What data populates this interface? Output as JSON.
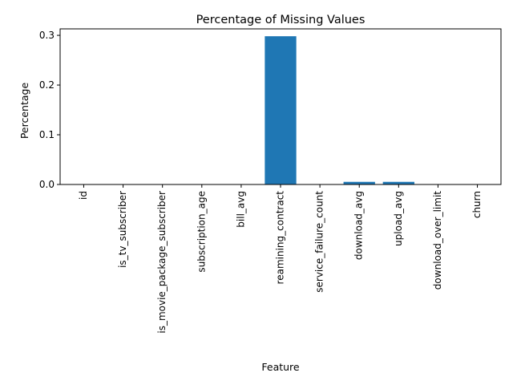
{
  "chart_data": {
    "type": "bar",
    "title": "Percentage of Missing Values",
    "xlabel": "Feature",
    "ylabel": "Percentage",
    "categories": [
      "id",
      "is_tv_subscriber",
      "is_movie_package_subscriber",
      "subscription_age",
      "bill_avg",
      "reamining_contract",
      "service_failure_count",
      "download_avg",
      "upload_avg",
      "download_over_limit",
      "churn"
    ],
    "values": [
      0,
      0,
      0,
      0,
      0,
      0.2982,
      0,
      0.0053,
      0.0053,
      0,
      0
    ],
    "ylim": [
      0,
      0.313
    ],
    "yticks": [
      0.0,
      0.1,
      0.2,
      0.3
    ],
    "ytick_labels": [
      "0.0",
      "0.1",
      "0.2",
      "0.3"
    ],
    "grid": false,
    "legend": "none",
    "bar_color": "#1f77b4"
  }
}
